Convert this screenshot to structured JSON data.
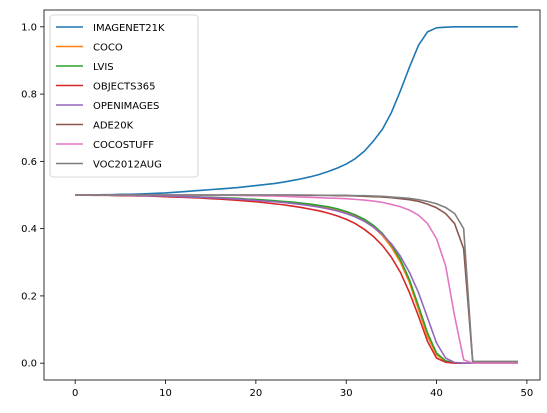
{
  "chart_data": {
    "type": "line",
    "title": "",
    "xlabel": "",
    "ylabel": "",
    "xlim": [
      -3.45,
      51.45
    ],
    "ylim": [
      -0.05,
      1.05
    ],
    "xticks": [
      0,
      10,
      20,
      30,
      40,
      50
    ],
    "yticks": [
      0.0,
      0.2,
      0.4,
      0.6,
      0.8,
      1.0
    ],
    "xtick_labels": [
      "0",
      "10",
      "20",
      "30",
      "40",
      "50"
    ],
    "ytick_labels": [
      "0.0",
      "0.2",
      "0.4",
      "0.6",
      "0.8",
      "1.0"
    ],
    "grid": false,
    "legend_position": "upper-left",
    "x": [
      0,
      1,
      2,
      3,
      4,
      5,
      6,
      7,
      8,
      9,
      10,
      11,
      12,
      13,
      14,
      15,
      16,
      17,
      18,
      19,
      20,
      21,
      22,
      23,
      24,
      25,
      26,
      27,
      28,
      29,
      30,
      31,
      32,
      33,
      34,
      35,
      36,
      37,
      38,
      39,
      40,
      41,
      42,
      43,
      44,
      45,
      46,
      47,
      48,
      49
    ],
    "series": [
      {
        "name": "IMAGENET21K",
        "color": "#1f77b4",
        "values": [
          0.5,
          0.5,
          0.5,
          0.501,
          0.501,
          0.502,
          0.502,
          0.503,
          0.504,
          0.505,
          0.506,
          0.508,
          0.51,
          0.512,
          0.514,
          0.516,
          0.518,
          0.52,
          0.522,
          0.525,
          0.528,
          0.531,
          0.534,
          0.538,
          0.543,
          0.548,
          0.554,
          0.561,
          0.57,
          0.58,
          0.592,
          0.608,
          0.63,
          0.66,
          0.695,
          0.745,
          0.81,
          0.88,
          0.945,
          0.985,
          0.997,
          0.999,
          1.0,
          1.0,
          1.0,
          1.0,
          1.0,
          1.0,
          1.0,
          1.0
        ]
      },
      {
        "name": "COCO",
        "color": "#ff7f0e",
        "values": [
          0.5,
          0.5,
          0.5,
          0.5,
          0.499,
          0.499,
          0.499,
          0.498,
          0.498,
          0.497,
          0.497,
          0.496,
          0.495,
          0.494,
          0.493,
          0.492,
          0.491,
          0.49,
          0.488,
          0.487,
          0.485,
          0.483,
          0.481,
          0.479,
          0.476,
          0.473,
          0.47,
          0.466,
          0.461,
          0.455,
          0.447,
          0.437,
          0.423,
          0.405,
          0.38,
          0.345,
          0.3,
          0.24,
          0.16,
          0.08,
          0.025,
          0.005,
          0.001,
          0.0,
          0.0,
          0.0,
          0.0,
          0.0,
          0.0,
          0.0
        ]
      },
      {
        "name": "LVIS",
        "color": "#2ca02c",
        "values": [
          0.5,
          0.5,
          0.5,
          0.5,
          0.499,
          0.499,
          0.499,
          0.499,
          0.498,
          0.498,
          0.497,
          0.497,
          0.496,
          0.495,
          0.494,
          0.493,
          0.492,
          0.491,
          0.49,
          0.488,
          0.487,
          0.485,
          0.483,
          0.481,
          0.479,
          0.476,
          0.473,
          0.469,
          0.465,
          0.459,
          0.451,
          0.441,
          0.428,
          0.41,
          0.386,
          0.352,
          0.308,
          0.248,
          0.17,
          0.09,
          0.03,
          0.007,
          0.001,
          0.0,
          0.0,
          0.0,
          0.0,
          0.0,
          0.0,
          0.0
        ]
      },
      {
        "name": "OBJECTS365",
        "color": "#d62728",
        "values": [
          0.5,
          0.5,
          0.499,
          0.499,
          0.499,
          0.498,
          0.498,
          0.497,
          0.497,
          0.496,
          0.495,
          0.494,
          0.493,
          0.492,
          0.491,
          0.489,
          0.488,
          0.486,
          0.484,
          0.482,
          0.48,
          0.477,
          0.474,
          0.471,
          0.467,
          0.463,
          0.458,
          0.453,
          0.446,
          0.438,
          0.428,
          0.415,
          0.398,
          0.377,
          0.35,
          0.315,
          0.27,
          0.21,
          0.14,
          0.065,
          0.015,
          0.003,
          0.0,
          0.0,
          0.0,
          0.0,
          0.0,
          0.0,
          0.0,
          0.0
        ]
      },
      {
        "name": "OPENIMAGES",
        "color": "#9467bd",
        "values": [
          0.5,
          0.5,
          0.5,
          0.5,
          0.499,
          0.499,
          0.499,
          0.498,
          0.498,
          0.497,
          0.497,
          0.496,
          0.495,
          0.494,
          0.493,
          0.492,
          0.491,
          0.489,
          0.488,
          0.486,
          0.484,
          0.482,
          0.48,
          0.478,
          0.475,
          0.472,
          0.468,
          0.464,
          0.459,
          0.453,
          0.445,
          0.435,
          0.422,
          0.405,
          0.383,
          0.355,
          0.318,
          0.27,
          0.21,
          0.135,
          0.06,
          0.015,
          0.002,
          0.0,
          0.0,
          0.0,
          0.0,
          0.0,
          0.0,
          0.0
        ]
      },
      {
        "name": "ADE20K",
        "color": "#8c564b",
        "values": [
          0.5,
          0.5,
          0.5,
          0.5,
          0.5,
          0.5,
          0.5,
          0.5,
          0.5,
          0.5,
          0.5,
          0.5,
          0.5,
          0.5,
          0.5,
          0.5,
          0.5,
          0.5,
          0.5,
          0.5,
          0.5,
          0.5,
          0.5,
          0.5,
          0.5,
          0.499,
          0.499,
          0.499,
          0.499,
          0.498,
          0.498,
          0.497,
          0.496,
          0.495,
          0.494,
          0.492,
          0.489,
          0.486,
          0.481,
          0.473,
          0.462,
          0.445,
          0.415,
          0.34,
          0.005,
          0.005,
          0.005,
          0.005,
          0.005,
          0.005
        ]
      },
      {
        "name": "COCOSTUFF",
        "color": "#e377c2",
        "values": [
          0.5,
          0.5,
          0.5,
          0.5,
          0.5,
          0.5,
          0.5,
          0.5,
          0.5,
          0.5,
          0.5,
          0.5,
          0.5,
          0.5,
          0.5,
          0.499,
          0.499,
          0.499,
          0.499,
          0.498,
          0.498,
          0.497,
          0.497,
          0.496,
          0.495,
          0.494,
          0.493,
          0.492,
          0.491,
          0.49,
          0.489,
          0.487,
          0.485,
          0.482,
          0.478,
          0.472,
          0.465,
          0.455,
          0.44,
          0.415,
          0.37,
          0.29,
          0.14,
          0.01,
          0.0,
          0.0,
          0.0,
          0.0,
          0.0,
          0.0
        ]
      },
      {
        "name": "VOC2012AUG",
        "color": "#7f7f7f",
        "values": [
          0.5,
          0.5,
          0.5,
          0.5,
          0.5,
          0.5,
          0.5,
          0.5,
          0.5,
          0.5,
          0.5,
          0.5,
          0.5,
          0.5,
          0.5,
          0.5,
          0.5,
          0.5,
          0.5,
          0.5,
          0.5,
          0.5,
          0.5,
          0.5,
          0.5,
          0.5,
          0.5,
          0.499,
          0.499,
          0.499,
          0.499,
          0.498,
          0.498,
          0.497,
          0.496,
          0.494,
          0.492,
          0.49,
          0.486,
          0.481,
          0.474,
          0.463,
          0.445,
          0.4,
          0.005,
          0.005,
          0.005,
          0.005,
          0.005,
          0.005
        ]
      }
    ]
  }
}
